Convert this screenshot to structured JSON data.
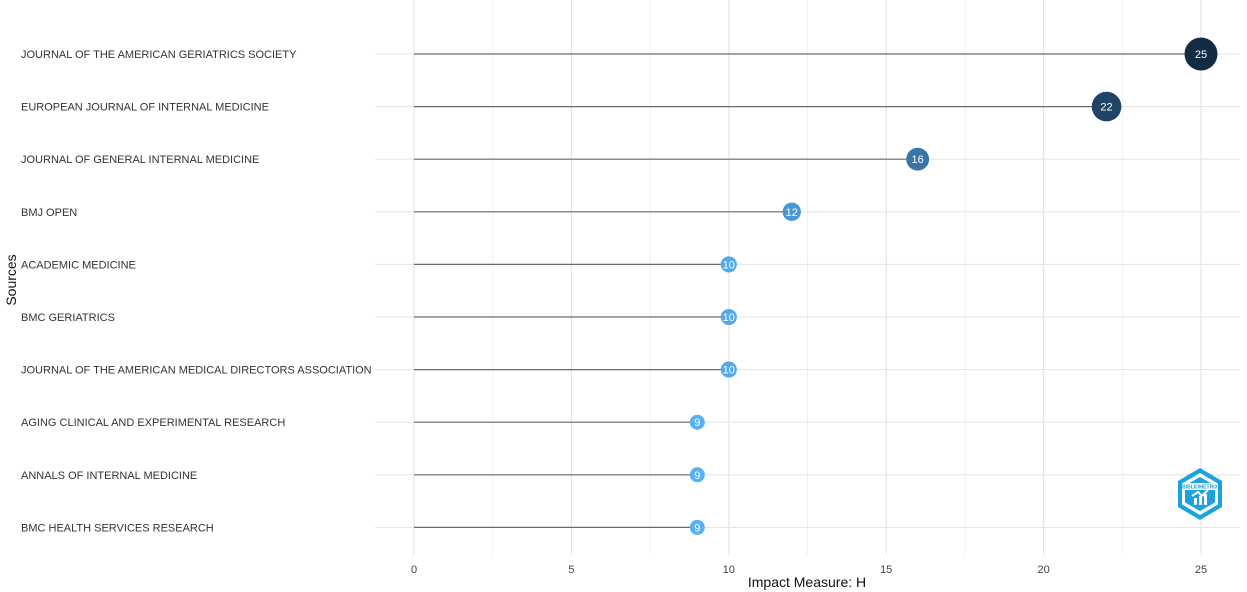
{
  "chart_data": {
    "type": "lollipop",
    "xlabel": "Impact Measure: H",
    "ylabel": "Sources",
    "xlim": [
      0,
      26
    ],
    "x_ticks": [
      0,
      5,
      10,
      15,
      20,
      25
    ],
    "categories": [
      "JOURNAL OF THE AMERICAN GERIATRICS SOCIETY",
      "EUROPEAN JOURNAL OF INTERNAL MEDICINE",
      "JOURNAL OF GENERAL INTERNAL MEDICINE",
      "BMJ OPEN",
      "ACADEMIC MEDICINE",
      "BMC GERIATRICS",
      "JOURNAL OF THE AMERICAN MEDICAL DIRECTORS ASSOCIATION",
      "AGING CLINICAL AND EXPERIMENTAL RESEARCH",
      "ANNALS OF INTERNAL MEDICINE",
      "BMC HEALTH SERVICES RESEARCH"
    ],
    "values": [
      25,
      22,
      16,
      12,
      10,
      10,
      10,
      9,
      9,
      9
    ],
    "grid": true,
    "color_scale": {
      "low": "#56B1F7",
      "high": "#132B43"
    }
  },
  "logo": {
    "name": "bibliometrix-logo",
    "text": "BIBLIOMETRIX",
    "color": "#1aa3dc"
  }
}
